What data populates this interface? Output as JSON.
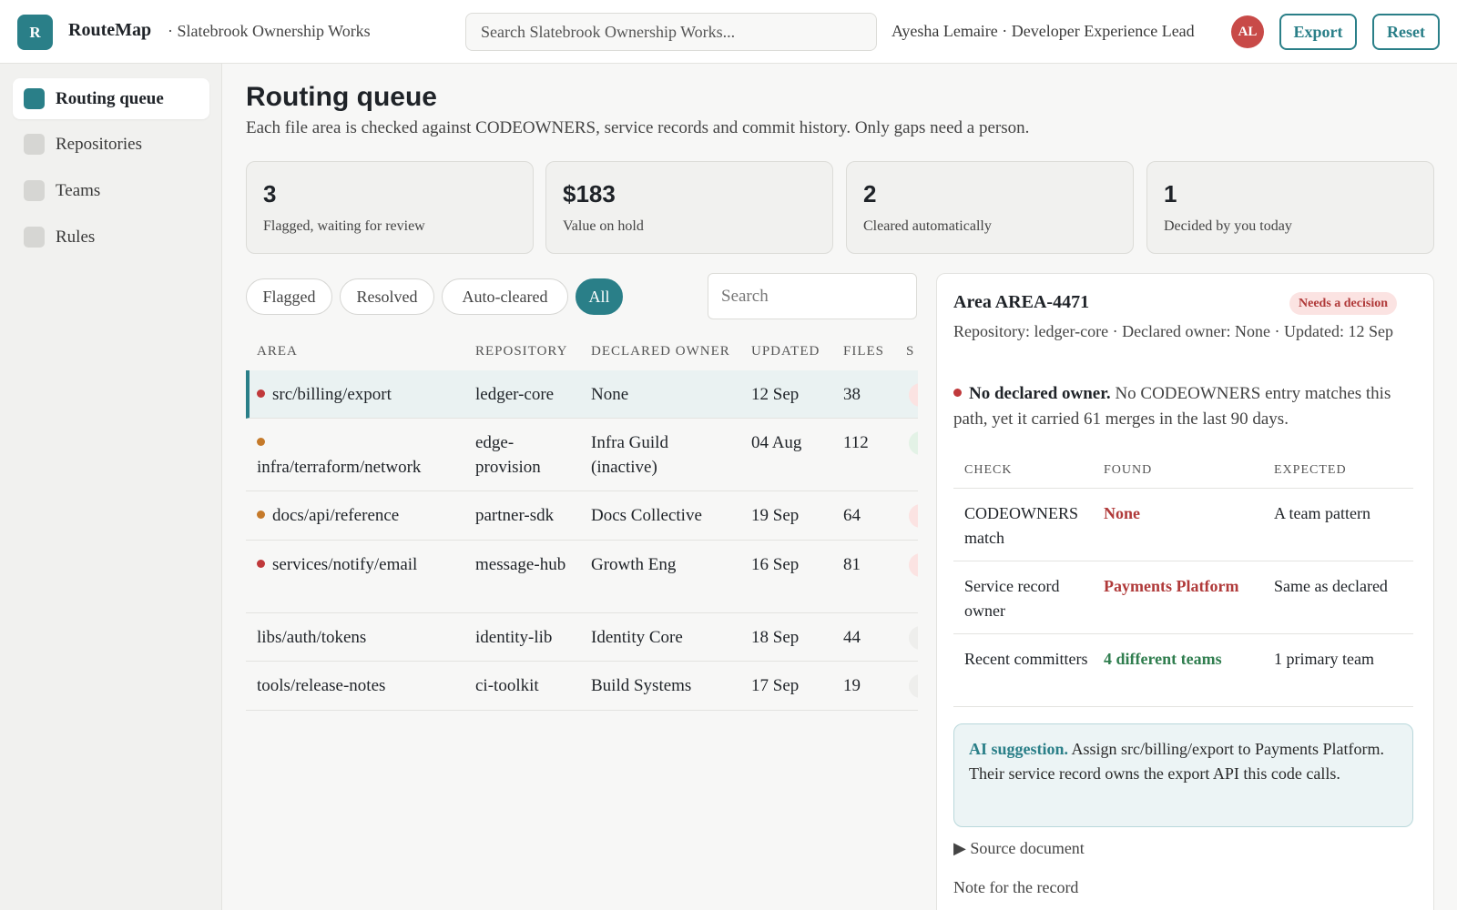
{
  "app": {
    "logo_letter": "R",
    "name": "RouteMap",
    "org": "· Slatebrook Ownership Works",
    "search_placeholder": "Search Slatebrook Ownership Works...",
    "user_line": "Ayesha Lemaire · Developer Experience Lead",
    "avatar_initials": "AL",
    "export_label": "Export",
    "reset_label": "Reset",
    "accent_color": "#2a7f88"
  },
  "sidebar": {
    "items": [
      {
        "label": "Routing queue",
        "active": true
      },
      {
        "label": "Repositories",
        "active": false
      },
      {
        "label": "Teams",
        "active": false
      },
      {
        "label": "Rules",
        "active": false
      }
    ]
  },
  "page": {
    "title": "Routing queue",
    "subtitle": "Each file area is checked against CODEOWNERS, service records and commit history. Only gaps need a person."
  },
  "stats": [
    {
      "value": "3",
      "label": "Flagged, waiting for review"
    },
    {
      "value": "$183",
      "label": "Value on hold"
    },
    {
      "value": "2",
      "label": "Cleared automatically"
    },
    {
      "value": "1",
      "label": "Decided by you today"
    }
  ],
  "filters": {
    "chips": [
      "Flagged",
      "Resolved",
      "Auto-cleared",
      "All"
    ],
    "active": "All",
    "search_placeholder": "Search"
  },
  "table": {
    "headers": [
      "AREA",
      "REPOSITORY",
      "DECLARED OWNER",
      "UPDATED",
      "FILES",
      "S"
    ],
    "rows": [
      {
        "area": "src/billing/export",
        "repo": "ledger-core",
        "owner": "None",
        "updated": "12 Sep",
        "files": "38",
        "dot": "red",
        "status_color": "#fbe3e2"
      },
      {
        "area": "infra/terraform/network",
        "repo": "edge-provision",
        "owner": "Infra Guild (inactive)",
        "updated": "04 Aug",
        "files": "112",
        "dot": "orange",
        "status_color": "#e3f2e6"
      },
      {
        "area": "docs/api/reference",
        "repo": "partner-sdk",
        "owner": "Docs Collective",
        "updated": "19 Sep",
        "files": "64",
        "dot": "orange",
        "status_color": "#fbe3e2"
      },
      {
        "area": "services/notify/email",
        "repo": "message-hub",
        "owner": "Growth Eng",
        "updated": "16 Sep",
        "files": "81",
        "dot": "red",
        "status_color": "#fbe3e2"
      },
      {
        "area": "libs/auth/tokens",
        "repo": "identity-lib",
        "owner": "Identity Core",
        "updated": "18 Sep",
        "files": "44",
        "dot": "none",
        "status_color": "#eeeeec"
      },
      {
        "area": "tools/release-notes",
        "repo": "ci-toolkit",
        "owner": "Build Systems",
        "updated": "17 Sep",
        "files": "19",
        "dot": "none",
        "status_color": "#eeeeec"
      }
    ]
  },
  "detail": {
    "title": "Area AREA-4471",
    "badge": "Needs a decision",
    "meta": "Repository: ledger-core · Declared owner: None · Updated: 12 Sep",
    "finding_bold": "No declared owner.",
    "finding_text": " No CODEOWNERS entry matches this path, yet it carried 61 merges in the last 90 days.",
    "check_headers": [
      "CHECK",
      "FOUND",
      "EXPECTED"
    ],
    "checks": [
      {
        "check": "CODEOWNERS match",
        "found": "None",
        "found_tone": "red",
        "expected": "A team pattern"
      },
      {
        "check": "Service record owner",
        "found": "Payments Platform",
        "found_tone": "red",
        "expected": "Same as declared"
      },
      {
        "check": "Recent committers",
        "found": "4 different teams",
        "found_tone": "green",
        "expected": "1 primary team"
      }
    ],
    "ai_label": "AI suggestion.",
    "ai_text": " Assign src/billing/export to Payments Platform. Their service record owns the export API this code calls.",
    "source_doc": "▶ Source document",
    "note_label": "Note for the record"
  }
}
